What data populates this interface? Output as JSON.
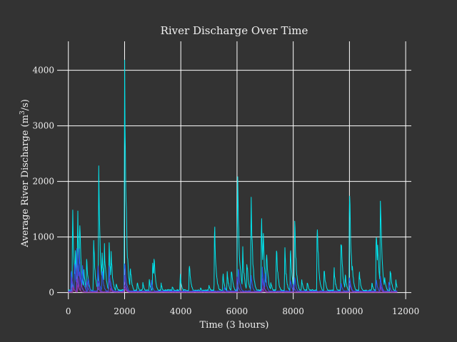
{
  "chart_data": {
    "type": "line",
    "title": "River Discharge Over Time",
    "xlabel": "Time (3 hours)",
    "ylabel_parts": [
      "Average River Discharge (m",
      "3",
      "/s)"
    ],
    "xlim": [
      -400,
      12200
    ],
    "ylim": [
      -120,
      4520
    ],
    "xticks": [
      0,
      2000,
      4000,
      6000,
      8000,
      10000,
      12000
    ],
    "xtick_labels": [
      "0",
      "2000",
      "4000",
      "6000",
      "8000",
      "10000",
      "12000"
    ],
    "yticks": [
      0,
      1000,
      2000,
      3000,
      4000
    ],
    "ytick_labels": [
      "0",
      "1000",
      "2000",
      "3000",
      "4000"
    ],
    "grid": true,
    "background_color": "#333333",
    "grid_color": "#ffffff",
    "text_color": "#f0f0f0",
    "x_range": [
      0,
      11700
    ],
    "series": [
      {
        "color": "#00e5ee",
        "base": 40,
        "peaks": [
          [
            150,
            1520
          ],
          [
            250,
            820
          ],
          [
            330,
            1480
          ],
          [
            400,
            1400
          ],
          [
            550,
            400
          ],
          [
            650,
            620
          ],
          [
            900,
            980
          ],
          [
            1080,
            2160
          ],
          [
            1200,
            740
          ],
          [
            1280,
            860
          ],
          [
            1450,
            840
          ],
          [
            1520,
            760
          ],
          [
            1700,
            180
          ],
          [
            2000,
            4320
          ],
          [
            2080,
            860
          ],
          [
            2200,
            520
          ],
          [
            2450,
            200
          ],
          [
            2650,
            180
          ],
          [
            2880,
            220
          ],
          [
            3000,
            600
          ],
          [
            3050,
            620
          ],
          [
            3300,
            160
          ],
          [
            3700,
            120
          ],
          [
            3980,
            320
          ],
          [
            4300,
            580
          ],
          [
            4700,
            100
          ],
          [
            5000,
            150
          ],
          [
            5200,
            1240
          ],
          [
            5500,
            350
          ],
          [
            5650,
            380
          ],
          [
            5800,
            480
          ],
          [
            6020,
            2230
          ],
          [
            6100,
            640
          ],
          [
            6200,
            820
          ],
          [
            6350,
            600
          ],
          [
            6500,
            1840
          ],
          [
            6600,
            300
          ],
          [
            6870,
            1400
          ],
          [
            6930,
            1140
          ],
          [
            7050,
            800
          ],
          [
            7200,
            200
          ],
          [
            7400,
            900
          ],
          [
            7700,
            780
          ],
          [
            7900,
            880
          ],
          [
            8050,
            1380
          ],
          [
            8300,
            250
          ],
          [
            8500,
            200
          ],
          [
            8850,
            1380
          ],
          [
            9100,
            450
          ],
          [
            9450,
            450
          ],
          [
            9700,
            1120
          ],
          [
            9850,
            340
          ],
          [
            10000,
            2080
          ],
          [
            10100,
            500
          ],
          [
            10350,
            380
          ],
          [
            10800,
            180
          ],
          [
            10950,
            1240
          ],
          [
            11000,
            980
          ],
          [
            11100,
            1820
          ],
          [
            11250,
            300
          ],
          [
            11450,
            460
          ],
          [
            11650,
            220
          ]
        ]
      },
      {
        "color": "#2a5cf5",
        "base": 25,
        "peaks": [
          [
            100,
            420
          ],
          [
            220,
            580
          ],
          [
            300,
            880
          ],
          [
            380,
            900
          ],
          [
            500,
            480
          ],
          [
            700,
            300
          ],
          [
            1050,
            480
          ],
          [
            1200,
            420
          ],
          [
            1450,
            460
          ],
          [
            2000,
            620
          ],
          [
            2950,
            220
          ],
          [
            5550,
            100
          ],
          [
            6050,
            440
          ],
          [
            6500,
            300
          ],
          [
            6900,
            460
          ],
          [
            7000,
            380
          ],
          [
            7900,
            250
          ],
          [
            8050,
            280
          ],
          [
            9700,
            180
          ],
          [
            10000,
            300
          ],
          [
            10950,
            240
          ],
          [
            11100,
            300
          ],
          [
            11400,
            200
          ]
        ]
      },
      {
        "color": "#5a40d8",
        "base": 15,
        "peaks": [
          [
            120,
            280
          ],
          [
            300,
            460
          ],
          [
            400,
            420
          ],
          [
            650,
            220
          ],
          [
            1050,
            260
          ],
          [
            1450,
            280
          ],
          [
            2000,
            300
          ],
          [
            6000,
            260
          ],
          [
            6900,
            280
          ],
          [
            8000,
            160
          ],
          [
            10000,
            200
          ],
          [
            11100,
            180
          ]
        ]
      },
      {
        "color": "#7a3cc8",
        "base": 10,
        "peaks": [
          [
            150,
            160
          ],
          [
            320,
            280
          ],
          [
            450,
            200
          ],
          [
            1050,
            120
          ],
          [
            2000,
            160
          ],
          [
            6950,
            140
          ],
          [
            11100,
            100
          ]
        ]
      },
      {
        "color": "#9a30a0",
        "base": 6,
        "peaks": [
          [
            180,
            90
          ],
          [
            340,
            160
          ],
          [
            1500,
            70
          ],
          [
            2000,
            90
          ],
          [
            6900,
            70
          ]
        ]
      }
    ]
  }
}
